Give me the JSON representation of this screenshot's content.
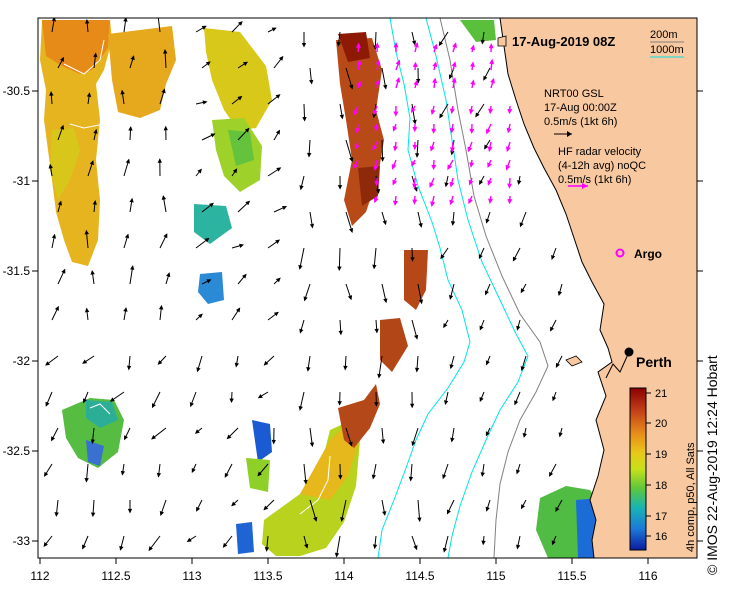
{
  "title": "17-Aug-2019 08Z",
  "isobath_legend": {
    "label_200": "200m",
    "label_1000": "1000m",
    "color_200": "#808080",
    "color_1000": "#00e5e5"
  },
  "nrt_legend": {
    "line1": "NRT00 GSL",
    "line2": "17-Aug 00:00Z",
    "line3": "0.5m/s (1kt 6h)"
  },
  "hf_legend": {
    "line1": "HF radar velocity",
    "line2": "(4-12h avg) noQC",
    "line3": "0.5m/s (1kt 6h)",
    "color": "#ff00ff"
  },
  "argo": {
    "label": "Argo",
    "color": "#ff00ff"
  },
  "city": {
    "label": "Perth"
  },
  "credit": "© IMOS 22-Aug-2019 12:24 Hobart",
  "colorbar": {
    "caption": "4h comp, p50, All Sats",
    "ticks": [
      "21",
      "20",
      "19",
      "18",
      "17",
      "16"
    ],
    "stops": [
      "#8b0000",
      "#c2401a",
      "#e88c1a",
      "#e8c81a",
      "#c8e01a",
      "#5cc83c",
      "#18b4b4",
      "#1c78d8",
      "#0c1ca0"
    ]
  },
  "axes": {
    "x_ticks": [
      "112",
      "112.5",
      "113",
      "113.5",
      "114",
      "114.5",
      "115",
      "115.5",
      "116"
    ],
    "y_ticks": [
      "-30.5",
      "-31",
      "-31.5",
      "-32",
      "-32.5",
      "-33"
    ],
    "xlim": [
      112,
      116.3
    ],
    "ylim": [
      -33.1,
      -30.05
    ]
  },
  "colors": {
    "land": "#f8c8a0",
    "coast": "#000000",
    "isobath_1000": "#00e5e5",
    "isobath_200": "#808080"
  }
}
